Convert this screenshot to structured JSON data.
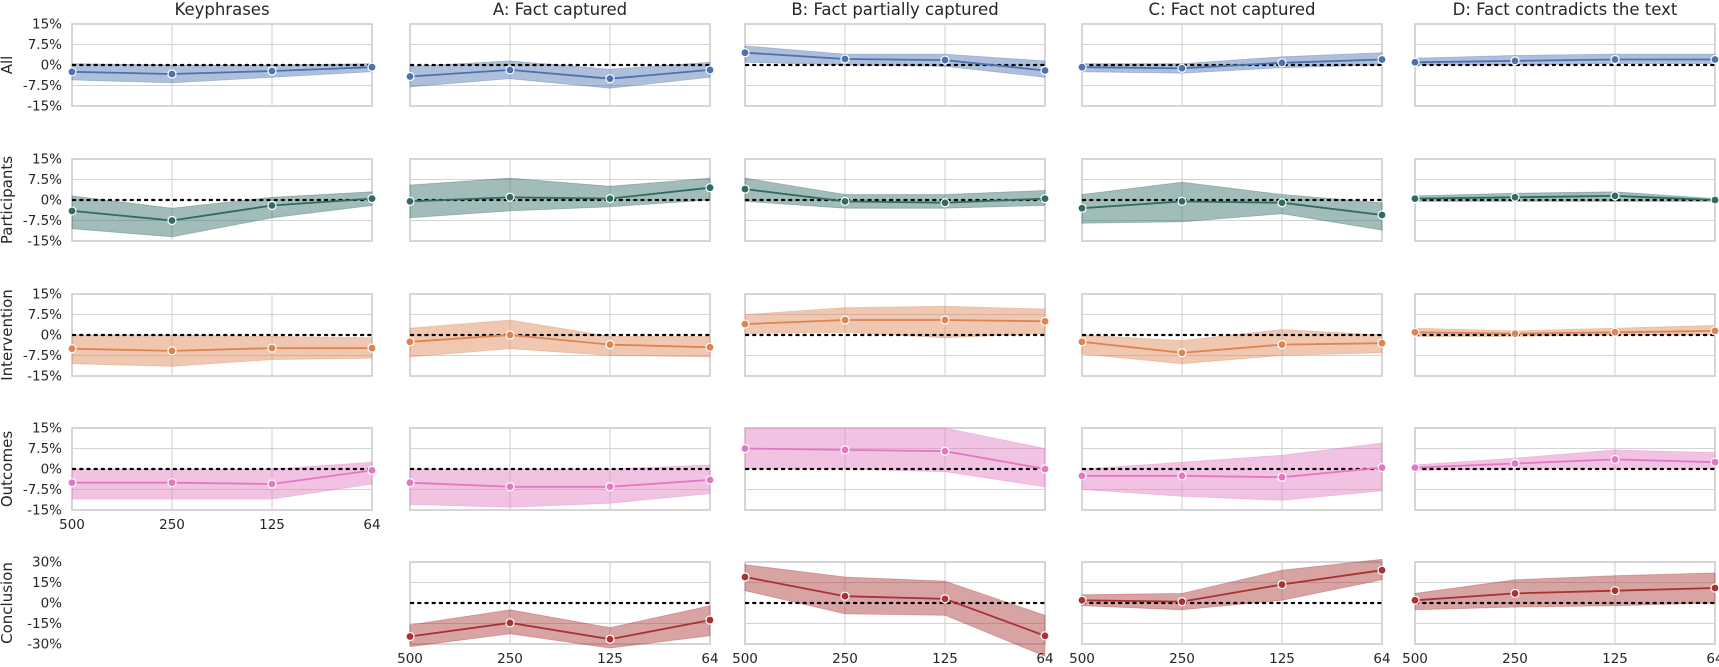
{
  "chart_data": {
    "type": "line",
    "col_titles": [
      "Keyphrases",
      "A: Fact captured",
      "B: Fact partially captured",
      "C: Fact not captured",
      "D: Fact contradicts the text"
    ],
    "row_labels": [
      "All",
      "Participants",
      "Intervention",
      "Outcomes",
      "Conclusion"
    ],
    "x_ticks": [
      "500",
      "250",
      "125",
      "64"
    ],
    "y_ticks": [
      [
        "15%",
        "7.5%",
        "0%",
        "-7.5%",
        "-15%"
      ],
      [
        "15%",
        "7.5%",
        "0%",
        "-7.5%",
        "-15%"
      ],
      [
        "15%",
        "7.5%",
        "0%",
        "-7.5%",
        "-15%"
      ],
      [
        "15%",
        "7.5%",
        "0%",
        "-7.5%",
        "-15%"
      ],
      [
        "30%",
        "15%",
        "0%",
        "-15%",
        "-30%"
      ]
    ],
    "ylim": [
      [
        -15,
        15
      ],
      [
        -15,
        15
      ],
      [
        -15,
        15
      ],
      [
        -15,
        15
      ],
      [
        -30,
        30
      ]
    ],
    "colors": [
      "#4c72b0",
      "#2f6b63",
      "#dd8452",
      "#e377c2",
      "#a83234"
    ],
    "panels": [
      [
        {
          "mean": [
            -2.5,
            -3.3,
            -2.2,
            -0.8
          ],
          "lo": [
            -5.5,
            -6.5,
            -4.5,
            -2.5
          ],
          "hi": [
            0.5,
            0,
            0,
            0.5
          ]
        },
        {
          "mean": [
            -4.2,
            -1.8,
            -5.0,
            -1.8
          ],
          "lo": [
            -8,
            -5,
            -8.5,
            -4.5
          ],
          "hi": [
            -0.5,
            1.5,
            -1.5,
            1.0
          ]
        },
        {
          "mean": [
            4.5,
            2.2,
            1.8,
            -2.0
          ],
          "lo": [
            1,
            0,
            -0.5,
            -4.5
          ],
          "hi": [
            7,
            4,
            4,
            1.5
          ]
        },
        {
          "mean": [
            -0.8,
            -1.2,
            0.8,
            2.0
          ],
          "lo": [
            -2.5,
            -3,
            -1,
            0
          ],
          "hi": [
            0.5,
            0.5,
            3,
            4.5
          ]
        },
        {
          "mean": [
            1.0,
            1.5,
            2.0,
            2.0
          ],
          "lo": [
            0,
            0,
            0.5,
            0.5
          ],
          "hi": [
            2.5,
            3.5,
            4,
            4
          ]
        }
      ],
      [
        {
          "mean": [
            -4.0,
            -7.5,
            -2.0,
            0.5
          ],
          "lo": [
            -10.5,
            -13.5,
            -6.5,
            -2
          ],
          "hi": [
            1.5,
            -3,
            1,
            3
          ]
        },
        {
          "mean": [
            -0.5,
            1.0,
            0.5,
            4.5
          ],
          "lo": [
            -6.5,
            -4,
            -2.5,
            0
          ],
          "hi": [
            5.5,
            8,
            5,
            8
          ]
        },
        {
          "mean": [
            4.0,
            -0.5,
            -1.0,
            0.5
          ],
          "lo": [
            -0.5,
            -3,
            -3,
            -2
          ],
          "hi": [
            8,
            2,
            2,
            3.5
          ]
        },
        {
          "mean": [
            -3.0,
            -0.5,
            -1.0,
            -5.5
          ],
          "lo": [
            -8.5,
            -8,
            -5,
            -11
          ],
          "hi": [
            2,
            6.5,
            2,
            -1
          ]
        },
        {
          "mean": [
            0.5,
            1.0,
            1.5,
            0.0
          ],
          "lo": [
            -0.5,
            -0.5,
            -0.5,
            -0.5
          ],
          "hi": [
            1.5,
            2.5,
            3,
            0.5
          ]
        }
      ],
      [
        {
          "mean": [
            -5.0,
            -5.8,
            -4.8,
            -4.8
          ],
          "lo": [
            -10.5,
            -11.5,
            -9,
            -8.5
          ],
          "hi": [
            0,
            0,
            -0.5,
            -1
          ]
        },
        {
          "mean": [
            -2.5,
            0.0,
            -3.5,
            -4.5
          ],
          "lo": [
            -8,
            -5,
            -7.5,
            -8
          ],
          "hi": [
            2.5,
            5.5,
            -0.5,
            -0.5
          ]
        },
        {
          "mean": [
            4.0,
            5.5,
            5.5,
            5.0
          ],
          "lo": [
            0.5,
            1,
            -1,
            0.5
          ],
          "hi": [
            7.5,
            10,
            10.5,
            9.5
          ]
        },
        {
          "mean": [
            -2.5,
            -6.5,
            -3.5,
            -3.0
          ],
          "lo": [
            -7,
            -10.5,
            -7.5,
            -6.5
          ],
          "hi": [
            0,
            -2,
            2,
            0
          ]
        },
        {
          "mean": [
            1.0,
            0.5,
            1.0,
            1.5
          ],
          "lo": [
            -0.5,
            -0.5,
            0,
            0
          ],
          "hi": [
            2.5,
            1.5,
            2.5,
            3.5
          ]
        }
      ],
      [
        {
          "mean": [
            -5.0,
            -5.0,
            -5.5,
            -0.5
          ],
          "lo": [
            -11,
            -11,
            -11,
            -5.5
          ],
          "hi": [
            0,
            0,
            0,
            2.5
          ]
        },
        {
          "mean": [
            -5.0,
            -6.5,
            -6.5,
            -4.0
          ],
          "lo": [
            -13,
            -14,
            -12.5,
            -9
          ],
          "hi": [
            0,
            0,
            0,
            1.5
          ]
        },
        {
          "mean": [
            7.5,
            7.0,
            6.5,
            0.0
          ],
          "lo": [
            0,
            0,
            -1,
            -6.5
          ],
          "hi": [
            15,
            15,
            15,
            7.5
          ]
        },
        {
          "mean": [
            -2.5,
            -2.5,
            -3.0,
            0.5
          ],
          "lo": [
            -7.5,
            -10,
            -11.5,
            -8
          ],
          "hi": [
            0,
            2.5,
            5,
            9.5
          ]
        },
        {
          "mean": [
            0.5,
            2.0,
            3.5,
            2.5
          ],
          "lo": [
            -0.5,
            0,
            0,
            0
          ],
          "hi": [
            1.5,
            4,
            7,
            6
          ]
        }
      ],
      [
        null,
        {
          "mean": [
            -24.5,
            -14.5,
            -26.5,
            -12.5
          ],
          "lo": [
            -32,
            -22.5,
            -33,
            -24
          ],
          "hi": [
            -16,
            -5,
            -18,
            -2
          ]
        },
        {
          "mean": [
            19.0,
            5.0,
            3.0,
            -24.0
          ],
          "lo": [
            9,
            -8,
            -9,
            -39
          ],
          "hi": [
            28,
            19,
            16,
            -9
          ]
        },
        {
          "mean": [
            2.0,
            1.0,
            13.5,
            24.0
          ],
          "lo": [
            -2,
            -5,
            2,
            17
          ],
          "hi": [
            6,
            7,
            24,
            32
          ]
        },
        {
          "mean": [
            2.0,
            7.0,
            9.0,
            11.0
          ],
          "lo": [
            -5,
            -3,
            -2,
            0
          ],
          "hi": [
            7,
            17,
            20,
            22
          ]
        }
      ]
    ]
  }
}
